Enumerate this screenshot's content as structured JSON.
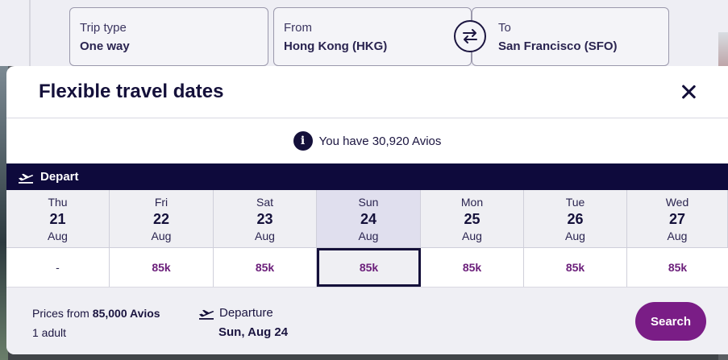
{
  "search_form": {
    "trip_type": {
      "label": "Trip type",
      "value": "One way"
    },
    "from": {
      "label": "From",
      "value": "Hong Kong (HKG)"
    },
    "to": {
      "label": "To",
      "value": "San Francisco (SFO)"
    },
    "swap_icon": "swap-arrows-icon"
  },
  "modal": {
    "title": "Flexible travel dates",
    "close_icon": "close-icon",
    "avios_balance": "You have 30,920 Avios",
    "info_icon": "info-icon",
    "depart_label": "Depart",
    "days": [
      {
        "dow": "Thu",
        "day": "21",
        "month": "Aug",
        "price": "-"
      },
      {
        "dow": "Fri",
        "day": "22",
        "month": "Aug",
        "price": "85k"
      },
      {
        "dow": "Sat",
        "day": "23",
        "month": "Aug",
        "price": "85k"
      },
      {
        "dow": "Sun",
        "day": "24",
        "month": "Aug",
        "price": "85k"
      },
      {
        "dow": "Mon",
        "day": "25",
        "month": "Aug",
        "price": "85k"
      },
      {
        "dow": "Tue",
        "day": "26",
        "month": "Aug",
        "price": "85k"
      },
      {
        "dow": "Wed",
        "day": "27",
        "month": "Aug",
        "price": "85k"
      }
    ],
    "selected_day": "24"
  },
  "footer": {
    "prices_from_label": "Prices from",
    "prices_from_value": "85,000 Avios",
    "passengers": "1 adult",
    "departure_label": "Departure",
    "departure_date": "Sun, Aug 24",
    "search_label": "Search"
  },
  "colors": {
    "navy": "#0e0a3c",
    "accent_purple": "#7a1d86",
    "price_purple": "#6b1e7a"
  }
}
